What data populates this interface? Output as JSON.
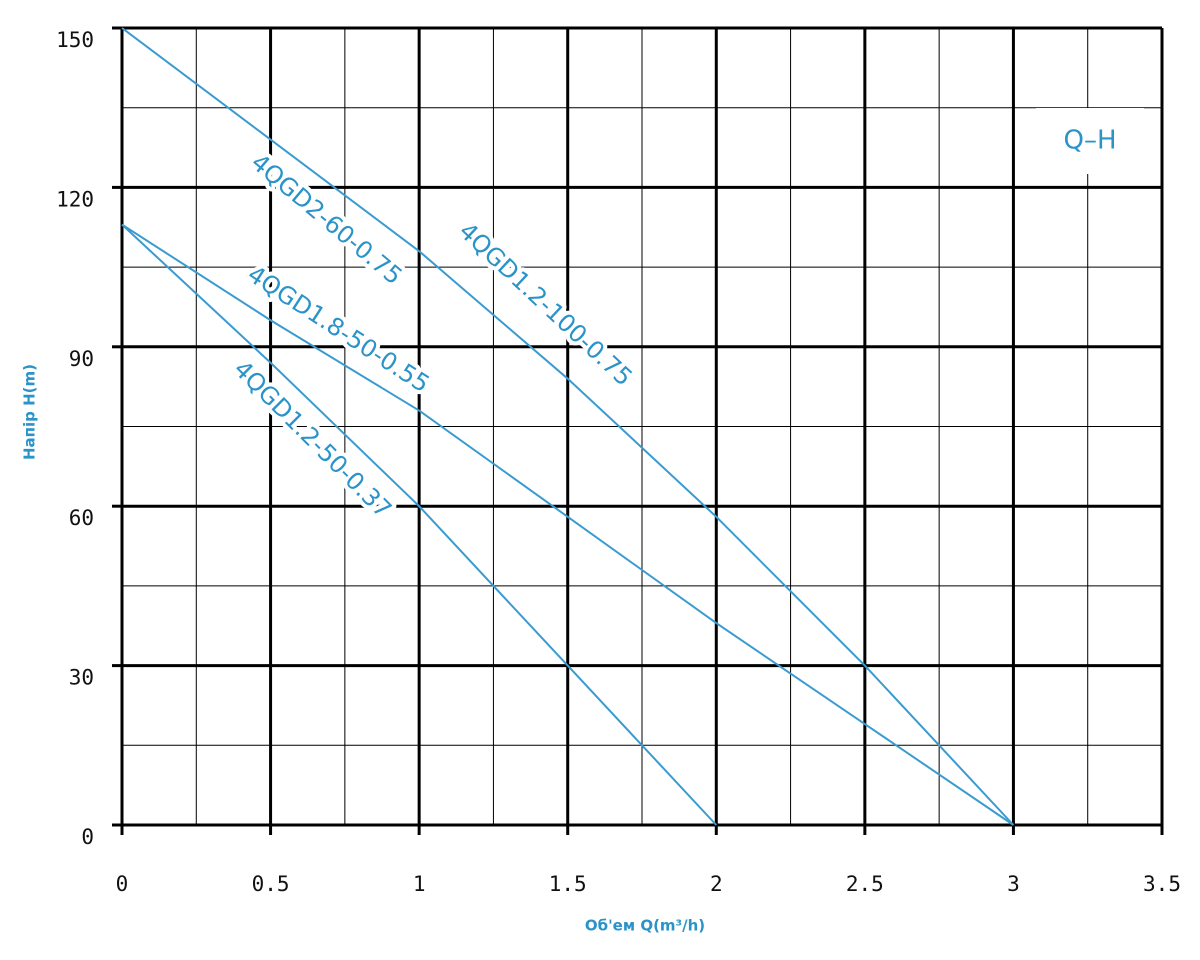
{
  "chart_data": {
    "type": "line",
    "x_label": "Об'ем Q(m³/h)",
    "y_label": "Напір H(m)",
    "tag": "Q–H",
    "xlim": [
      0,
      3.5
    ],
    "ylim": [
      0,
      150
    ],
    "xticks": [
      0,
      0.5,
      1,
      1.5,
      2,
      2.5,
      3,
      3.5
    ],
    "yticks": [
      0,
      30,
      60,
      90,
      120,
      150
    ],
    "xminorticks": [
      0.25,
      0.75,
      1.25,
      1.75,
      2.25,
      2.75,
      3.25
    ],
    "yminorticks": [
      15,
      45,
      75,
      105,
      135
    ],
    "grid": true,
    "series": [
      {
        "name": "4QGD1.2-100-0.75",
        "color": "#3a9bd0",
        "x": [
          0,
          0.5,
          1,
          1.5,
          2,
          2.5,
          3
        ],
        "values": [
          150,
          129,
          108,
          84,
          58,
          30,
          0
        ]
      },
      {
        "name": "4QGD1.8-50-0.55",
        "color": "#3a9bd0",
        "x": [
          0,
          0.5,
          1,
          1.5,
          2,
          2.5,
          3
        ],
        "values": [
          113,
          95,
          78,
          58,
          38,
          19,
          0
        ]
      },
      {
        "name": "4QGD1.2-50-0.37",
        "color": "#3a9bd0",
        "x": [
          0,
          0.5,
          1,
          1.5,
          2
        ],
        "values": [
          113,
          87,
          60,
          30,
          0
        ]
      }
    ],
    "annotations": [
      {
        "text": "4QGD2-60-0.75"
      }
    ]
  }
}
